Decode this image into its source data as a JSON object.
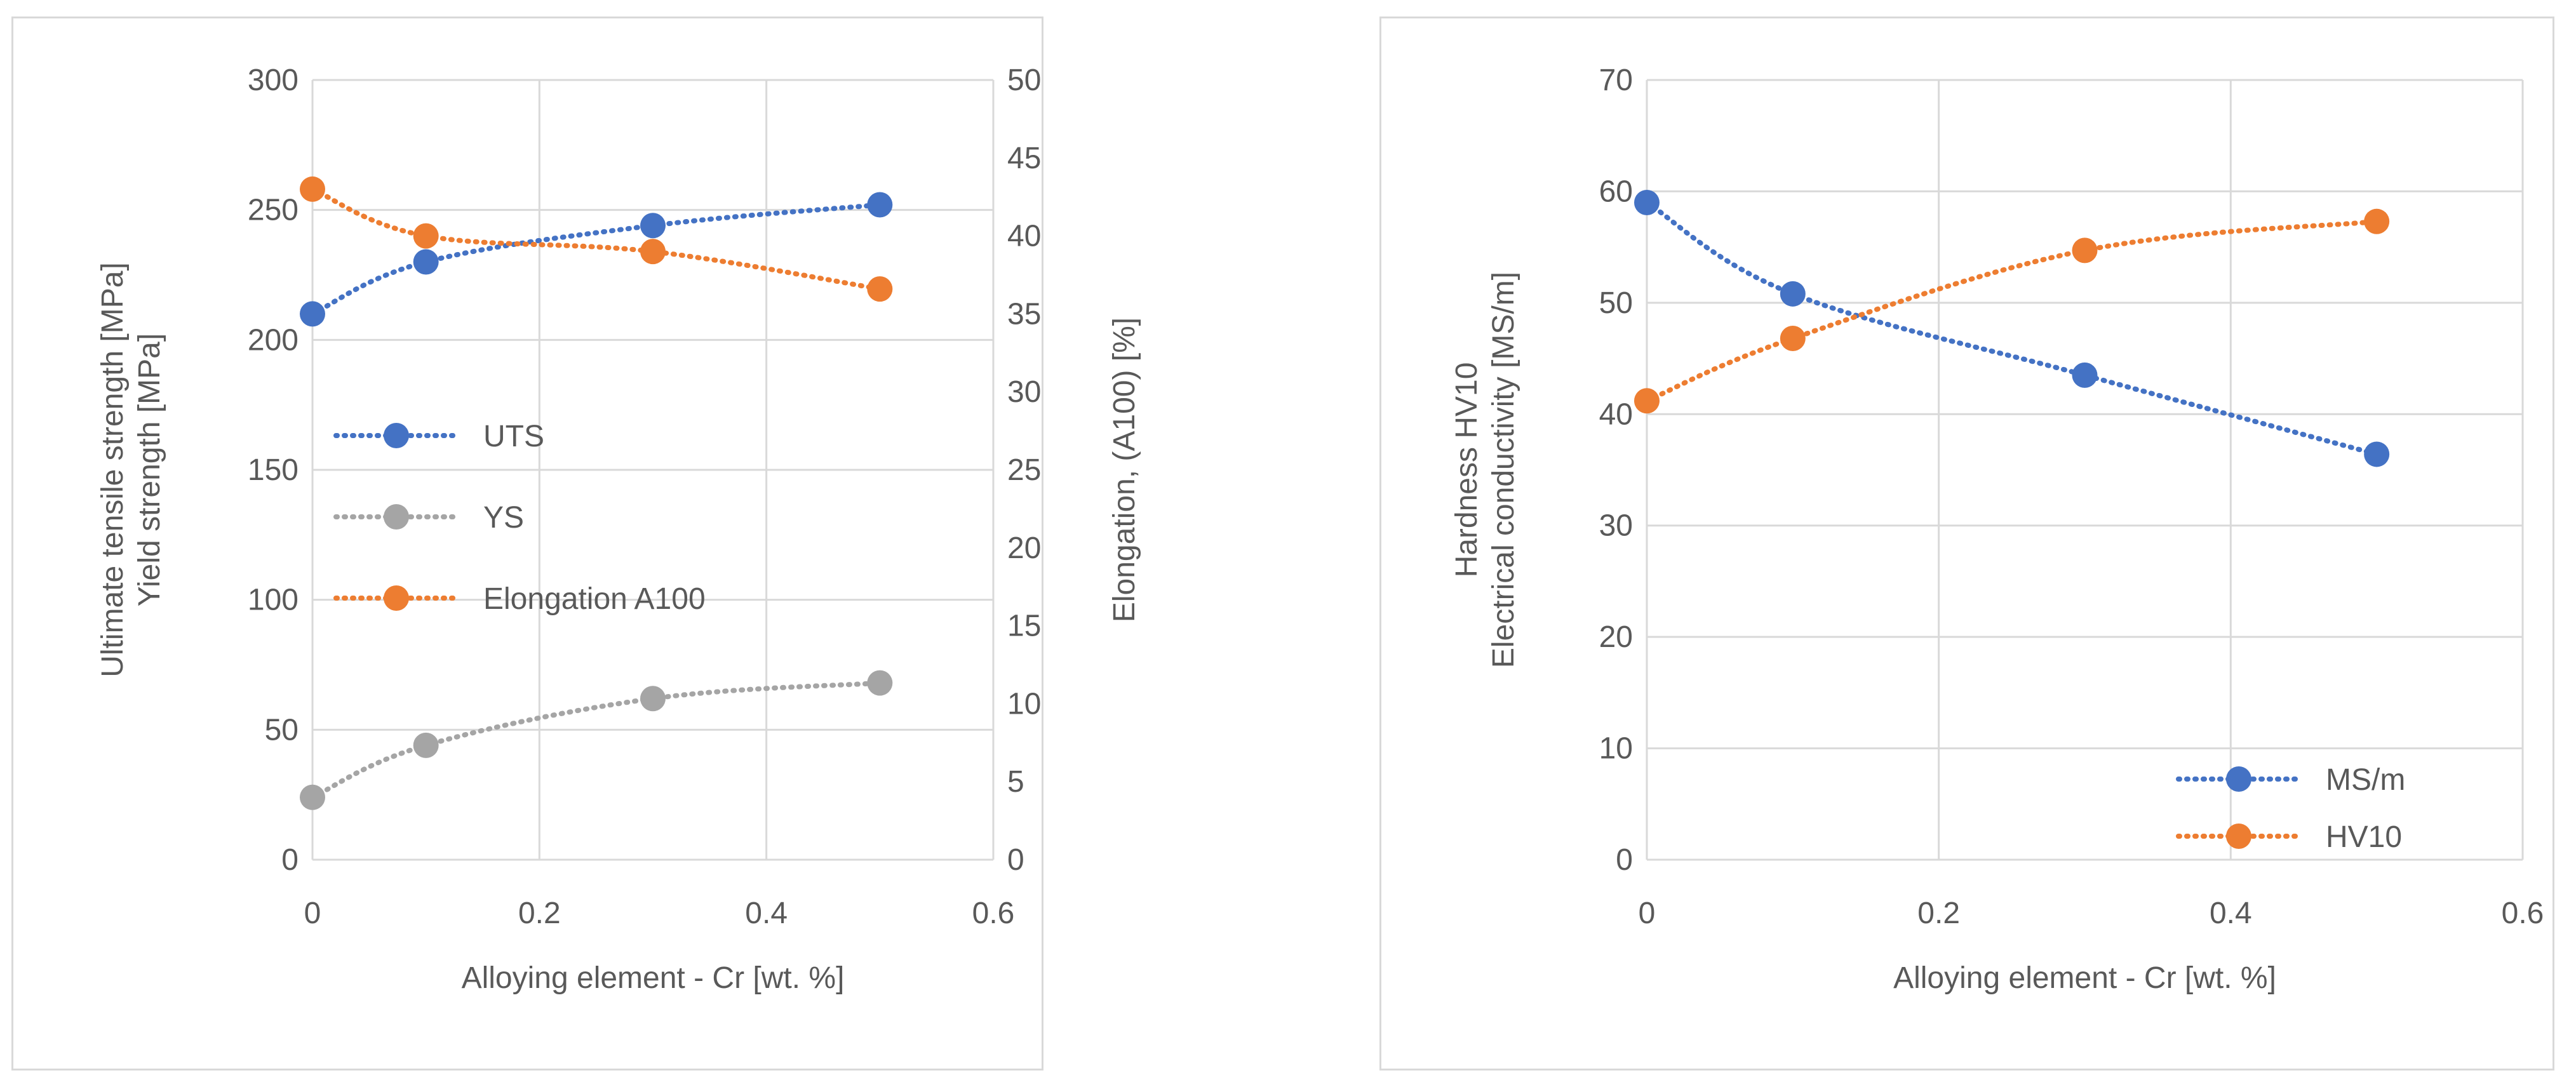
{
  "chart_data": [
    {
      "type": "line",
      "title": "",
      "xlabel": "Alloying element - Cr [wt. %]",
      "ylabel_lines": [
        "Ultimate tensile strength [MPa]",
        "Yield strength [MPa]"
      ],
      "y2label": "Elongation, (A100) [%]",
      "xlim": [
        0,
        0.6
      ],
      "xticks": [
        0,
        0.2,
        0.4,
        0.6
      ],
      "xtick_labels": [
        "0",
        "0.2",
        "0.4",
        "0.6"
      ],
      "ylim": [
        0,
        300
      ],
      "yticks": [
        0,
        50,
        100,
        150,
        200,
        250,
        300
      ],
      "ytick_labels": [
        "0",
        "50",
        "100",
        "150",
        "200",
        "250",
        "300"
      ],
      "y2lim": [
        0,
        50
      ],
      "y2ticks": [
        0,
        5,
        10,
        15,
        20,
        25,
        30,
        35,
        40,
        45,
        50
      ],
      "y2tick_labels": [
        "0",
        "5",
        "10",
        "15",
        "20",
        "25",
        "30",
        "35",
        "40",
        "45",
        "50"
      ],
      "grid": true,
      "legend_position": "middle-left",
      "series": [
        {
          "name": "UTS",
          "axis": "y",
          "color": "#4472c4",
          "x": [
            0,
            0.1,
            0.3,
            0.5
          ],
          "values": [
            210,
            230,
            244,
            252
          ]
        },
        {
          "name": "YS",
          "axis": "y",
          "color": "#a5a5a5",
          "x": [
            0,
            0.1,
            0.3,
            0.5
          ],
          "values": [
            24,
            44,
            62,
            68
          ]
        },
        {
          "name": "Elongation A100",
          "axis": "y2",
          "color": "#ed7d31",
          "x": [
            0,
            0.1,
            0.3,
            0.5
          ],
          "values": [
            43,
            40,
            39,
            36.6
          ]
        }
      ]
    },
    {
      "type": "line",
      "title": "",
      "xlabel": "Alloying element - Cr [wt. %]",
      "ylabel_lines": [
        "Hardness HV10",
        "Electrical conductivity [MS/m]"
      ],
      "xlim": [
        0,
        0.6
      ],
      "xticks": [
        0,
        0.2,
        0.4,
        0.6
      ],
      "xtick_labels": [
        "0",
        "0.2",
        "0.4",
        "0.6"
      ],
      "ylim": [
        0,
        70
      ],
      "yticks": [
        0,
        10,
        20,
        30,
        40,
        50,
        60,
        70
      ],
      "ytick_labels": [
        "0",
        "10",
        "20",
        "30",
        "40",
        "50",
        "60",
        "70"
      ],
      "grid": true,
      "legend_position": "bottom-right",
      "series": [
        {
          "name": "MS/m",
          "axis": "y",
          "color": "#4472c4",
          "x": [
            0,
            0.1,
            0.3,
            0.5
          ],
          "values": [
            59,
            50.8,
            43.5,
            36.4
          ]
        },
        {
          "name": "HV10",
          "axis": "y",
          "color": "#ed7d31",
          "x": [
            0,
            0.1,
            0.3,
            0.5
          ],
          "values": [
            41.2,
            46.8,
            54.7,
            57.3
          ]
        }
      ]
    }
  ]
}
